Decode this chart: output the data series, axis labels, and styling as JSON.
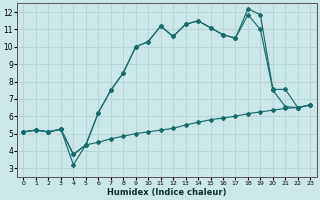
{
  "xlabel": "Humidex (Indice chaleur)",
  "background_color": "#cbe8e8",
  "grid_color": "#b8d4d4",
  "line_color": "#1a6b6b",
  "xlim": [
    -0.5,
    23.5
  ],
  "ylim": [
    2.5,
    12.5
  ],
  "xticks": [
    0,
    1,
    2,
    3,
    4,
    5,
    6,
    7,
    8,
    9,
    10,
    11,
    12,
    13,
    14,
    15,
    16,
    17,
    18,
    19,
    20,
    21,
    22,
    23
  ],
  "yticks": [
    3,
    4,
    5,
    6,
    7,
    8,
    9,
    10,
    11,
    12
  ],
  "series": [
    {
      "x": [
        0,
        1,
        2,
        3,
        4,
        5,
        6,
        7,
        8,
        9,
        10,
        11,
        12,
        13,
        14,
        15,
        16,
        17,
        18,
        19,
        20,
        21,
        22,
        23
      ],
      "y": [
        5.1,
        5.2,
        5.1,
        5.25,
        3.8,
        4.35,
        4.5,
        4.7,
        4.85,
        5.0,
        5.1,
        5.2,
        5.3,
        5.5,
        5.65,
        5.8,
        5.9,
        6.0,
        6.15,
        6.25,
        6.35,
        6.45,
        6.5,
        6.65
      ]
    },
    {
      "x": [
        0,
        1,
        2,
        3,
        4,
        5,
        6,
        7,
        8,
        9,
        10,
        11,
        12,
        13,
        14,
        15,
        16,
        17,
        18,
        19,
        20,
        21,
        22,
        23
      ],
      "y": [
        5.1,
        5.2,
        5.1,
        5.25,
        3.8,
        4.35,
        6.2,
        7.5,
        8.5,
        10.0,
        10.3,
        11.2,
        10.6,
        11.3,
        11.5,
        11.1,
        10.7,
        10.5,
        11.85,
        11.0,
        7.5,
        6.55,
        6.5,
        6.65
      ]
    },
    {
      "x": [
        0,
        1,
        2,
        3,
        4,
        5,
        6,
        7,
        8,
        9,
        10,
        11,
        12,
        13,
        14,
        15,
        16,
        17,
        18,
        19,
        20,
        21,
        22,
        23
      ],
      "y": [
        5.1,
        5.2,
        5.1,
        5.25,
        3.2,
        4.35,
        6.2,
        7.5,
        8.5,
        10.0,
        10.3,
        11.2,
        10.6,
        11.3,
        11.5,
        11.1,
        10.7,
        10.5,
        12.2,
        11.85,
        7.55,
        7.55,
        6.5,
        6.65
      ]
    }
  ]
}
